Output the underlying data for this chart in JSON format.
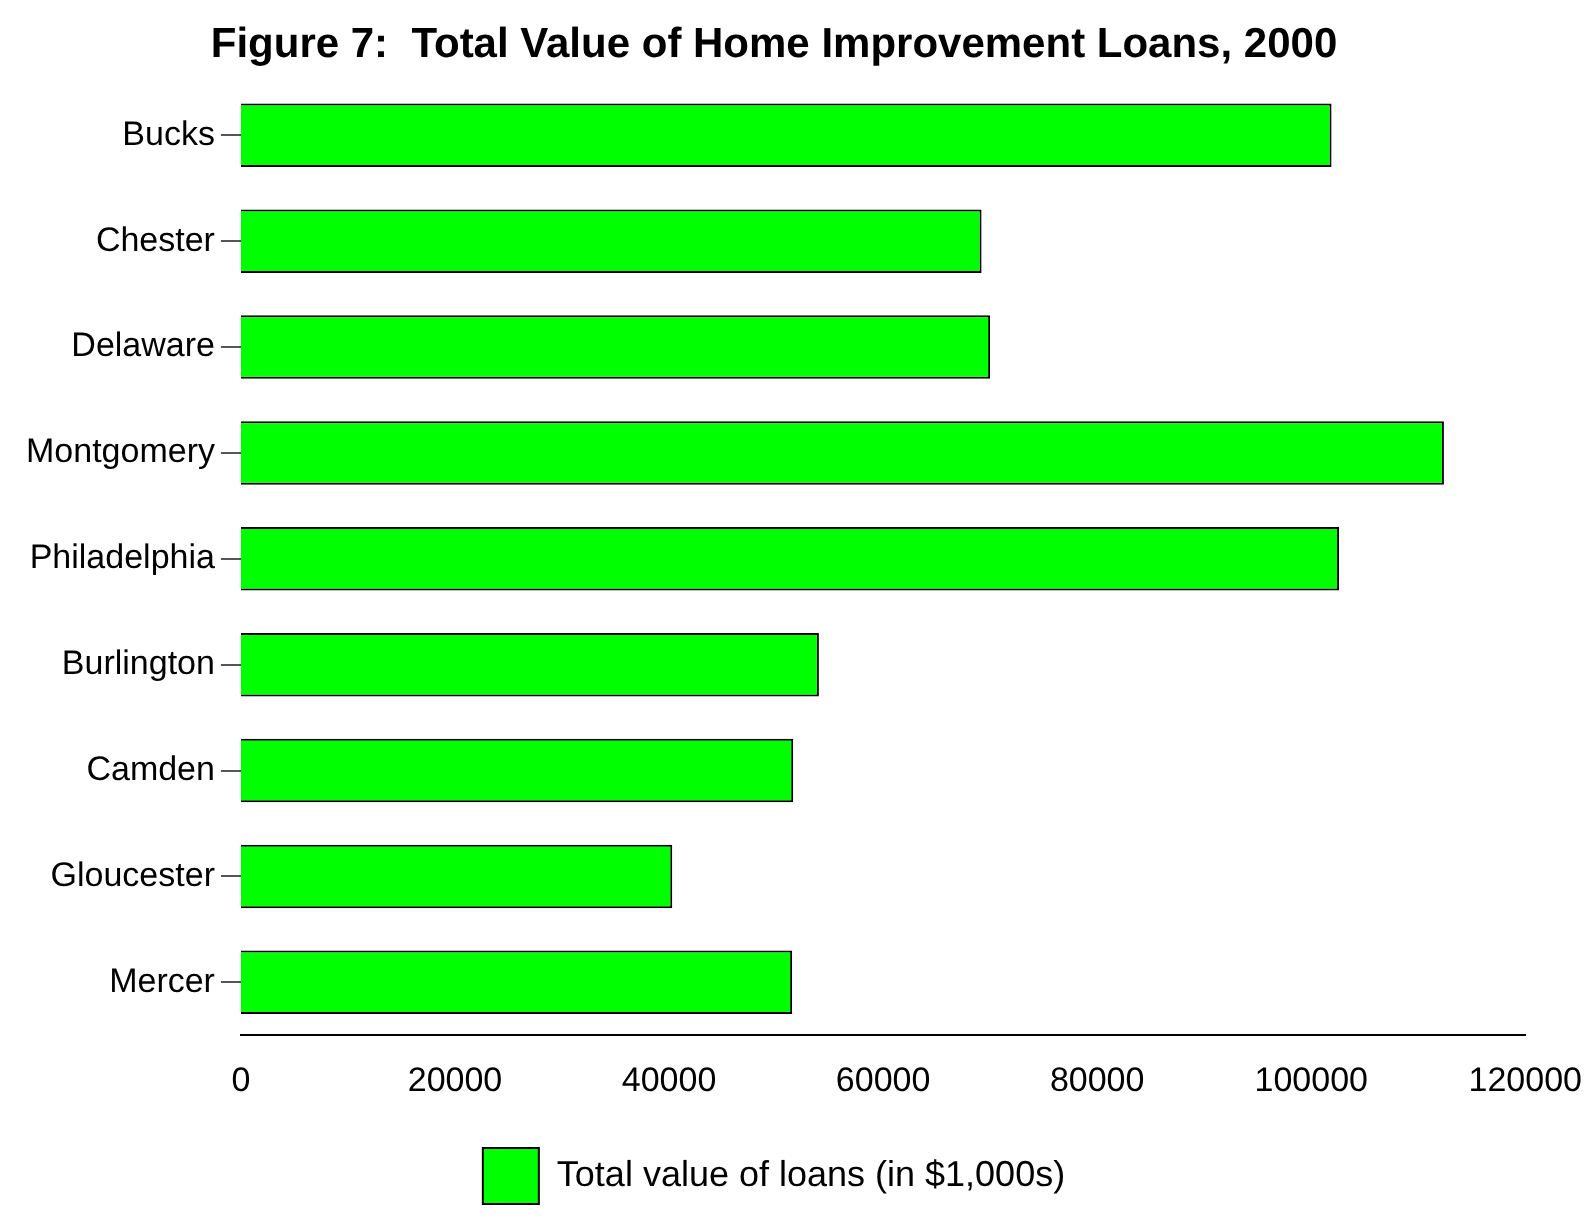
{
  "chart_data": {
    "type": "bar",
    "orientation": "horizontal",
    "title": "Figure 7:  Total Value of Home Improvement Loans, 2000",
    "categories": [
      "Bucks",
      "Chester",
      "Delaware",
      "Montgomery",
      "Philadelphia",
      "Burlington",
      "Camden",
      "Gloucester",
      "Mercer"
    ],
    "series": [
      {
        "name": "Total value of loans (in $1,000s)",
        "color": "#00ff00",
        "values": [
          101900,
          69200,
          70000,
          112400,
          102600,
          54000,
          51600,
          40300,
          51500
        ]
      }
    ],
    "xlim": [
      0,
      120000
    ],
    "xticks": [
      0,
      20000,
      40000,
      60000,
      80000,
      100000,
      120000
    ],
    "grid": false,
    "legend": "bottom"
  }
}
